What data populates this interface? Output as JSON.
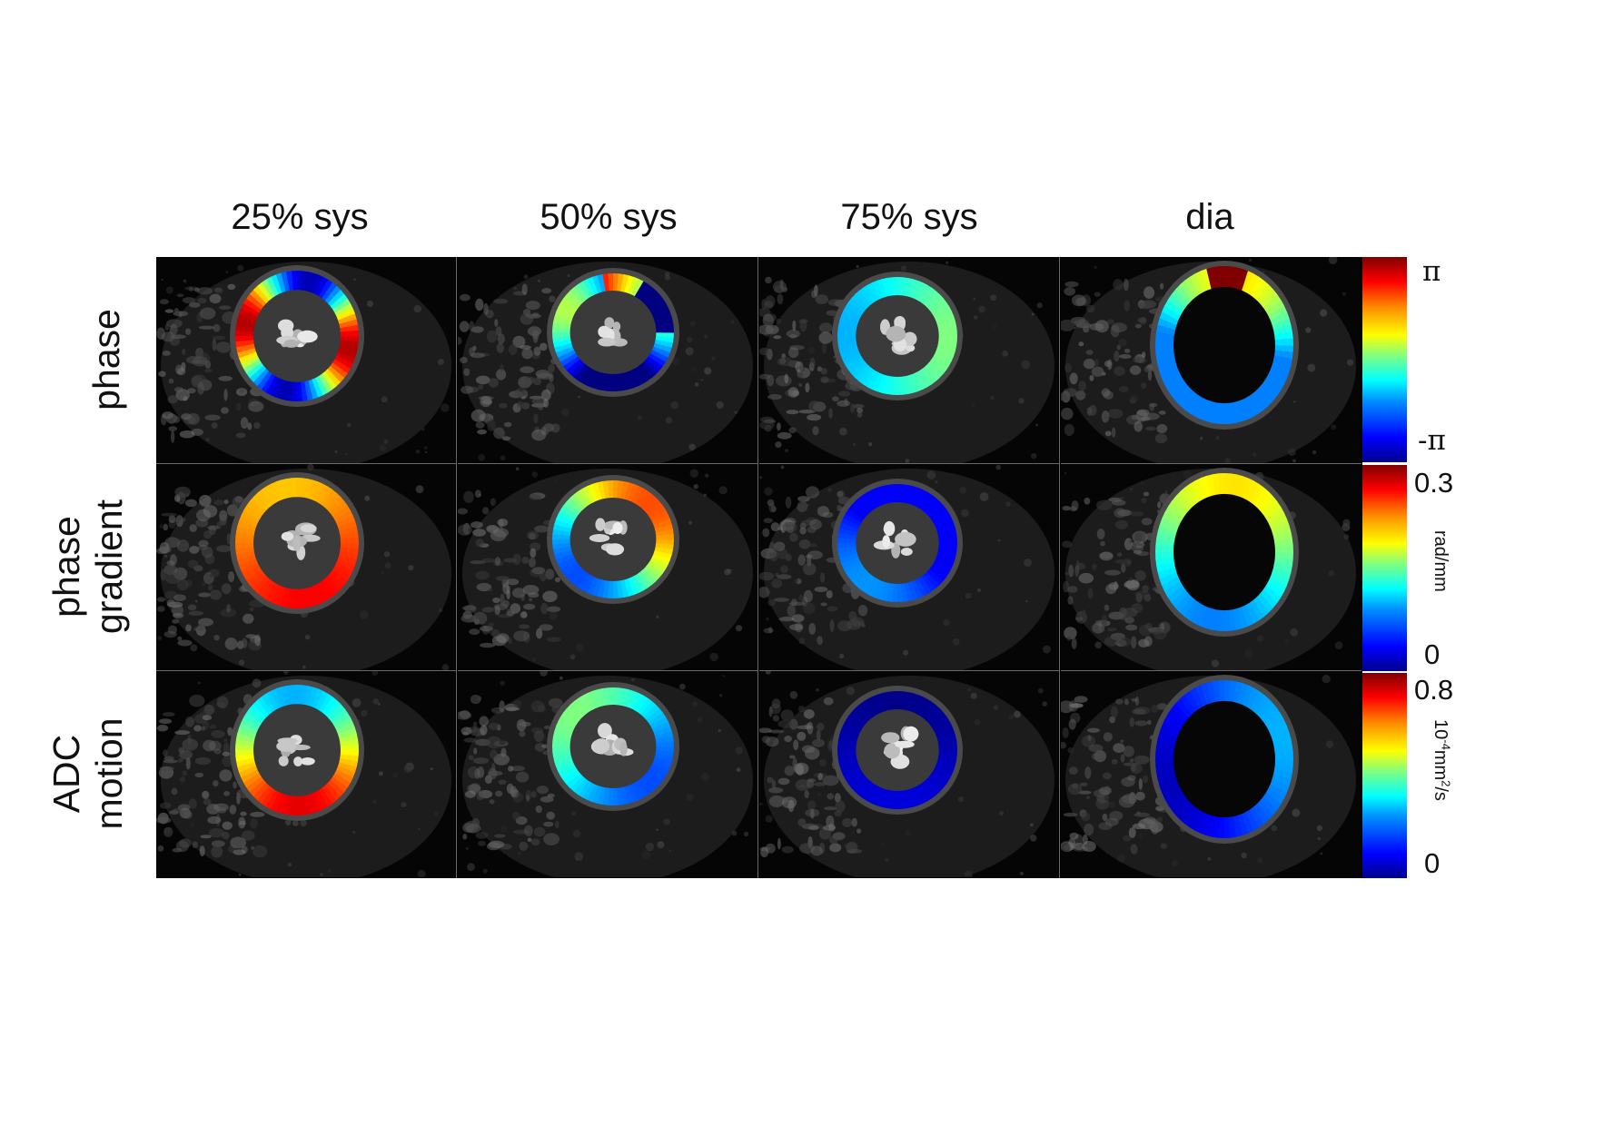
{
  "columns": [
    {
      "label": "25% sys"
    },
    {
      "label": "50% sys"
    },
    {
      "label": "75% sys"
    },
    {
      "label": "dia"
    }
  ],
  "rows": [
    {
      "label_lines": [
        "phase"
      ]
    },
    {
      "label_lines": [
        "phase",
        "gradient"
      ]
    },
    {
      "label_lines": [
        "ADC",
        "motion"
      ]
    }
  ],
  "colorbars": [
    {
      "max_label": "π",
      "min_label": "-π",
      "unit": ""
    },
    {
      "max_label": "0.3",
      "min_label": "0",
      "unit": "rad/mm"
    },
    {
      "max_label": "0.8",
      "min_label": "0",
      "unit_base": "10",
      "unit_exp": "-4",
      "unit_rest": "mm",
      "unit_exp2": "2",
      "unit_tail": "/s"
    }
  ],
  "colormap": "jet",
  "colors": {
    "background": "#ffffff",
    "panel_bg": "#050505",
    "panel_border": "#6a6a6a"
  }
}
